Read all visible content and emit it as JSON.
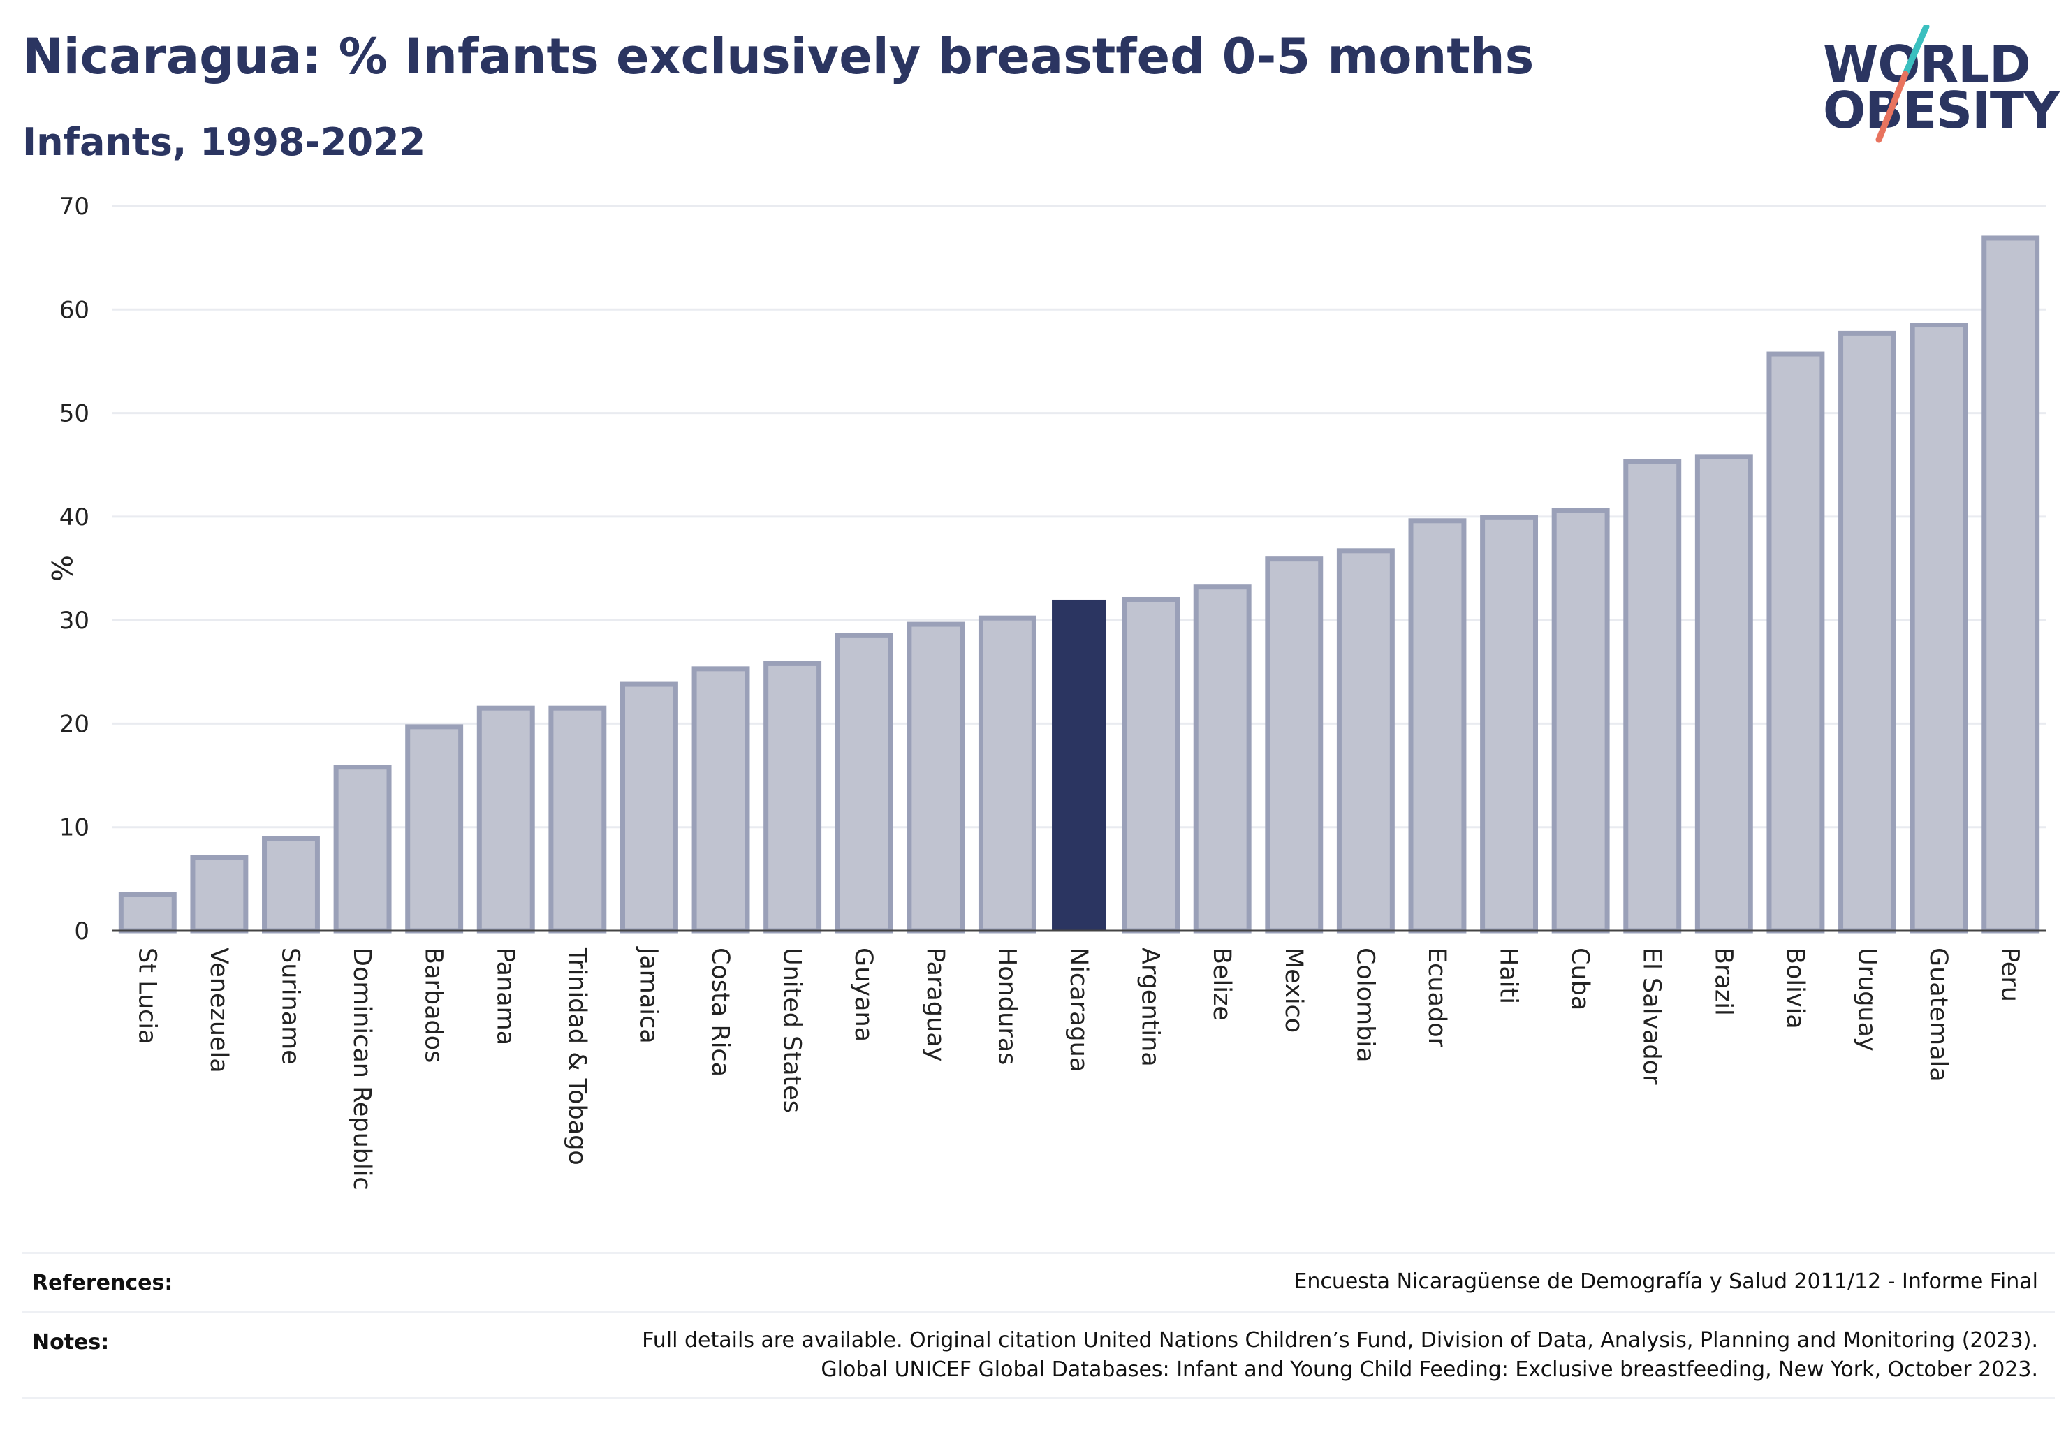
{
  "header": {
    "title": "Nicaragua: % Infants exclusively breastfed 0-5 months",
    "subtitle": "Infants, 1998-2022"
  },
  "logo": {
    "line1": "WORLD",
    "line2": "OBESITY",
    "colors": {
      "text": "#2b3561",
      "slash_top": "#3bbfbf",
      "slash_bottom": "#e8735e"
    }
  },
  "chart_data": {
    "type": "bar",
    "title": "Nicaragua: % Infants exclusively breastfed 0-5 months",
    "subtitle": "Infants, 1998-2022",
    "ylabel": "%",
    "xlabel": "",
    "ylim": [
      0,
      70
    ],
    "yticks": [
      0,
      10,
      20,
      30,
      40,
      50,
      60,
      70
    ],
    "grid": true,
    "highlight": "Nicaragua",
    "colors": {
      "bar": "#c0c3d0",
      "bar_edge": "#9aa0b8",
      "highlight": "#2b3561"
    },
    "categories": [
      "St Lucia",
      "Venezuela",
      "Suriname",
      "Dominican Republic",
      "Barbados",
      "Panama",
      "Trinidad & Tobago",
      "Jamaica",
      "Costa Rica",
      "United States",
      "Guyana",
      "Paraguay",
      "Honduras",
      "Nicaragua",
      "Argentina",
      "Belize",
      "Mexico",
      "Colombia",
      "Ecuador",
      "Haiti",
      "Cuba",
      "El Salvador",
      "Brazil",
      "Bolivia",
      "Uruguay",
      "Guatemala",
      "Peru"
    ],
    "values": [
      3.5,
      7.1,
      8.9,
      15.8,
      19.7,
      21.5,
      21.5,
      23.8,
      25.3,
      25.8,
      28.5,
      29.6,
      30.2,
      31.9,
      32.0,
      33.2,
      35.9,
      36.7,
      39.6,
      39.9,
      40.6,
      45.3,
      45.8,
      55.7,
      57.7,
      58.5,
      66.9
    ]
  },
  "footer": {
    "references_label": "References:",
    "references_text": "Encuesta Nicaragüense de Demografía y Salud 2011/12 - Informe Final",
    "notes_label": "Notes:",
    "notes_line1": "Full details are available. Original citation United Nations Children’s Fund, Division of Data, Analysis, Planning and Monitoring (2023).",
    "notes_line2": "Global UNICEF Global Databases: Infant and Young Child Feeding: Exclusive breastfeeding, New York, October 2023."
  }
}
